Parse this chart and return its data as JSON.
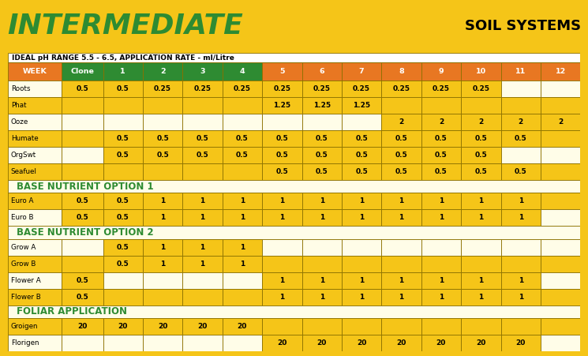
{
  "title": "INTERMEDIATE",
  "subtitle": "SOIL SYSTEMS",
  "ph_label": "IDEAL pH RANGE 5.5 - 6.5, APPLICATION RATE - ml/Litre",
  "col_headers": [
    "WEEK",
    "Clone",
    "1",
    "2",
    "3",
    "4",
    "5",
    "6",
    "7",
    "8",
    "9",
    "10",
    "11",
    "12"
  ],
  "hdr_colors": [
    "#E87722",
    "#2e8b32",
    "#2e8b32",
    "#2e8b32",
    "#2e8b32",
    "#2e8b32",
    "#E87722",
    "#E87722",
    "#E87722",
    "#E87722",
    "#E87722",
    "#E87722",
    "#E87722",
    "#E87722"
  ],
  "bg_main": "#F5C518",
  "bg_cream": "#FFFDE8",
  "bg_yellow": "#F5C518",
  "bg_section": "#FFFDE8",
  "border_dark": "#8B7000",
  "border_thin": "#8B7000",
  "text_green": "#2e8b32",
  "text_black": "#000000",
  "rows": [
    {
      "name": "Roots",
      "section": false,
      "bg": "cream",
      "vals": [
        "0.5",
        "0.5",
        "0.25",
        "0.25",
        "0.25",
        "0.25",
        "0.25",
        "0.25",
        "0.25",
        "0.25",
        "0.25",
        "",
        ""
      ]
    },
    {
      "name": "Phat",
      "section": false,
      "bg": "yellow",
      "vals": [
        "",
        "",
        "",
        "",
        "",
        "1.25",
        "1.25",
        "1.25",
        "",
        "",
        "",
        "",
        ""
      ]
    },
    {
      "name": "Ooze",
      "section": false,
      "bg": "cream",
      "vals": [
        "",
        "",
        "",
        "",
        "",
        "",
        "",
        "",
        "2",
        "2",
        "2",
        "2",
        "2"
      ]
    },
    {
      "name": "Humate",
      "section": false,
      "bg": "yellow",
      "vals": [
        "",
        "0.5",
        "0.5",
        "0.5",
        "0.5",
        "0.5",
        "0.5",
        "0.5",
        "0.5",
        "0.5",
        "0.5",
        "0.5",
        ""
      ]
    },
    {
      "name": "OrgSwt",
      "section": false,
      "bg": "cream",
      "vals": [
        "",
        "0.5",
        "0.5",
        "0.5",
        "0.5",
        "0.5",
        "0.5",
        "0.5",
        "0.5",
        "0.5",
        "0.5",
        "",
        ""
      ]
    },
    {
      "name": "Seafuel",
      "section": false,
      "bg": "yellow",
      "vals": [
        "",
        "",
        "",
        "",
        "",
        "0.5",
        "0.5",
        "0.5",
        "0.5",
        "0.5",
        "0.5",
        "0.5",
        ""
      ]
    },
    {
      "name": "BASE NUTRIENT OPTION 1",
      "section": true,
      "bg": "section",
      "vals": []
    },
    {
      "name": "Euro A",
      "section": false,
      "bg": "yellow",
      "vals": [
        "0.5",
        "0.5",
        "1",
        "1",
        "1",
        "1",
        "1",
        "1",
        "1",
        "1",
        "1",
        "1",
        ""
      ]
    },
    {
      "name": "Euro B",
      "section": false,
      "bg": "cream",
      "vals": [
        "0.5",
        "0.5",
        "1",
        "1",
        "1",
        "1",
        "1",
        "1",
        "1",
        "1",
        "1",
        "1",
        ""
      ]
    },
    {
      "name": "BASE NUTRIENT OPTION 2",
      "section": true,
      "bg": "section",
      "vals": []
    },
    {
      "name": "Grow A",
      "section": false,
      "bg": "cream",
      "vals": [
        "",
        "0.5",
        "1",
        "1",
        "1",
        "",
        "",
        "",
        "",
        "",
        "",
        "",
        ""
      ]
    },
    {
      "name": "Grow B",
      "section": false,
      "bg": "yellow",
      "vals": [
        "",
        "0.5",
        "1",
        "1",
        "1",
        "",
        "",
        "",
        "",
        "",
        "",
        "",
        ""
      ]
    },
    {
      "name": "Flower A",
      "section": false,
      "bg": "cream",
      "vals": [
        "0.5",
        "",
        "",
        "",
        "",
        "1",
        "1",
        "1",
        "1",
        "1",
        "1",
        "1",
        ""
      ]
    },
    {
      "name": "Flower B",
      "section": false,
      "bg": "yellow",
      "vals": [
        "0.5",
        "",
        "",
        "",
        "",
        "1",
        "1",
        "1",
        "1",
        "1",
        "1",
        "1",
        ""
      ]
    },
    {
      "name": "FOLIAR APPLICATION",
      "section": true,
      "bg": "section",
      "vals": []
    },
    {
      "name": "Groigen",
      "section": false,
      "bg": "yellow",
      "vals": [
        "20",
        "20",
        "20",
        "20",
        "20",
        "",
        "",
        "",
        "",
        "",
        "",
        "",
        ""
      ]
    },
    {
      "name": "Florigen",
      "section": false,
      "bg": "cream",
      "vals": [
        "",
        "",
        "",
        "",
        "",
        "20",
        "20",
        "20",
        "20",
        "20",
        "20",
        "20",
        ""
      ]
    }
  ]
}
